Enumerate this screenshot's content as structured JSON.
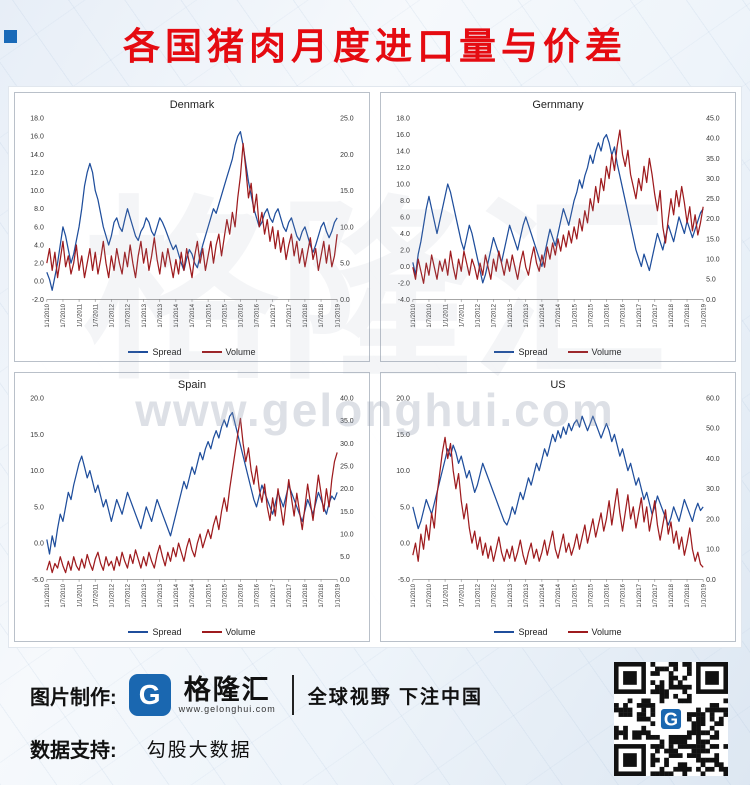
{
  "title": "各国猪肉月度进口量与价差",
  "watermark": {
    "cn": "格隆汇",
    "url": "www.gelonghui.com"
  },
  "colors": {
    "spread": "#1f4e9c",
    "volume": "#9e1b1e",
    "title_red": "#e50b11",
    "logo_blue": "#1a67b0"
  },
  "x_labels": [
    "1/1/2010",
    "1/7/2010",
    "1/1/2011",
    "1/7/2011",
    "1/1/2012",
    "1/7/2012",
    "1/1/2013",
    "1/7/2013",
    "1/1/2014",
    "1/7/2014",
    "1/1/2015",
    "1/7/2015",
    "1/1/2016",
    "1/7/2016",
    "1/1/2017",
    "1/7/2017",
    "1/1/2018",
    "1/7/2018",
    "1/1/2019"
  ],
  "chart_data": [
    {
      "type": "line",
      "title": "Denmark",
      "left_axis": {
        "min": -2,
        "max": 18,
        "step": 2
      },
      "right_axis": {
        "min": 0,
        "max": 25,
        "step": 5
      },
      "series": [
        {
          "name": "Spread",
          "axis": "left",
          "color": "#1f4e9c",
          "values": [
            1.0,
            0.2,
            -1.0,
            0.5,
            2.0,
            4.0,
            6.0,
            5.0,
            3.5,
            2.0,
            3.0,
            4.5,
            6.0,
            8.0,
            10.5,
            12.0,
            13.0,
            12.0,
            10.0,
            9.0,
            7.5,
            6.0,
            5.0,
            4.0,
            5.0,
            6.5,
            7.0,
            6.0,
            5.5,
            6.8,
            8.0,
            7.0,
            6.0,
            5.0,
            4.5,
            5.5,
            6.0,
            7.0,
            6.5,
            5.5,
            5.0,
            6.0,
            7.0,
            6.5,
            5.8,
            5.0,
            4.2,
            3.5,
            4.0,
            3.0,
            2.0,
            1.2,
            2.5,
            3.5,
            3.0,
            2.0,
            1.5,
            2.8,
            4.0,
            5.0,
            6.0,
            7.0,
            8.0,
            7.5,
            8.5,
            9.5,
            10.5,
            11.5,
            12.5,
            13.5,
            15.0,
            16.0,
            16.5,
            15.0,
            13.0,
            11.0,
            9.5,
            8.0,
            7.0,
            6.0,
            6.5,
            7.5,
            8.0,
            7.0,
            6.5,
            7.5,
            8.0,
            7.0,
            6.0,
            5.5,
            6.5,
            7.0,
            6.0,
            5.0,
            4.5,
            5.5,
            6.0,
            5.0,
            4.0,
            3.2,
            4.0,
            5.0,
            6.0,
            6.5,
            5.5,
            4.8,
            5.5,
            6.5,
            7.0
          ]
        },
        {
          "name": "Volume",
          "axis": "right",
          "color": "#9e1b1e",
          "values": [
            5.0,
            7.0,
            4.0,
            6.5,
            3.0,
            5.5,
            8.0,
            4.5,
            6.0,
            3.5,
            5.0,
            7.5,
            4.0,
            6.0,
            3.0,
            5.0,
            7.0,
            4.0,
            6.5,
            3.5,
            5.5,
            8.0,
            5.0,
            3.0,
            6.0,
            4.0,
            7.0,
            5.0,
            3.5,
            6.5,
            4.5,
            7.5,
            5.0,
            3.0,
            6.0,
            8.0,
            5.0,
            7.0,
            4.0,
            6.0,
            8.5,
            5.5,
            3.5,
            6.5,
            4.5,
            7.0,
            5.0,
            3.0,
            5.5,
            3.5,
            6.5,
            4.0,
            7.0,
            5.0,
            3.0,
            6.0,
            8.0,
            5.0,
            7.0,
            4.0,
            6.0,
            8.0,
            5.0,
            7.5,
            9.0,
            6.0,
            8.5,
            11.0,
            9.0,
            12.0,
            10.0,
            14.0,
            17.0,
            21.5,
            18.0,
            14.0,
            16.0,
            12.0,
            14.5,
            10.0,
            12.0,
            9.0,
            11.0,
            8.0,
            10.0,
            7.0,
            9.5,
            6.5,
            8.5,
            5.5,
            7.5,
            9.0,
            6.0,
            8.0,
            5.0,
            7.0,
            4.5,
            6.5,
            8.5,
            5.5,
            7.0,
            4.0,
            6.0,
            8.0,
            5.0,
            7.5,
            4.5,
            6.0,
            9.0
          ]
        }
      ]
    },
    {
      "type": "line",
      "title": "Gernmany",
      "left_axis": {
        "min": -4,
        "max": 18,
        "step": 2
      },
      "right_axis": {
        "min": 0,
        "max": 45,
        "step": 5
      },
      "series": [
        {
          "name": "Spread",
          "axis": "left",
          "color": "#1f4e9c",
          "values": [
            0.5,
            -1.0,
            1.5,
            3.0,
            5.0,
            7.0,
            8.5,
            7.0,
            5.5,
            4.0,
            5.5,
            7.0,
            8.5,
            10.0,
            9.0,
            7.5,
            6.0,
            4.5,
            3.0,
            2.0,
            3.5,
            5.0,
            4.0,
            2.5,
            1.0,
            -0.5,
            -2.0,
            -1.0,
            0.5,
            2.0,
            3.5,
            2.5,
            1.5,
            0.5,
            2.0,
            3.5,
            5.0,
            4.0,
            3.0,
            2.0,
            3.5,
            5.0,
            6.0,
            5.0,
            4.0,
            3.0,
            2.0,
            1.0,
            0.0,
            1.5,
            3.0,
            4.5,
            3.5,
            2.5,
            4.0,
            5.5,
            7.0,
            6.0,
            5.0,
            6.5,
            8.0,
            9.0,
            10.5,
            9.5,
            11.0,
            12.0,
            13.5,
            12.5,
            14.0,
            15.0,
            14.0,
            15.5,
            16.0,
            15.0,
            13.5,
            14.5,
            12.5,
            11.0,
            9.5,
            8.0,
            6.5,
            5.0,
            3.5,
            2.0,
            1.0,
            0.0,
            1.5,
            0.5,
            -0.5,
            1.0,
            2.5,
            4.0,
            3.0,
            2.0,
            3.5,
            5.0,
            4.0,
            3.0,
            4.5,
            6.0,
            5.0,
            4.0,
            5.5,
            4.5,
            3.5,
            4.5,
            5.5,
            6.5,
            7.0
          ]
        },
        {
          "name": "Volume",
          "axis": "right",
          "color": "#9e1b1e",
          "values": [
            8.0,
            5.0,
            10.0,
            7.0,
            4.0,
            9.0,
            6.0,
            11.0,
            8.0,
            5.0,
            9.5,
            7.0,
            10.0,
            6.0,
            12.0,
            8.0,
            5.0,
            10.0,
            7.0,
            12.0,
            9.0,
            6.0,
            10.0,
            8.0,
            5.0,
            9.0,
            6.0,
            11.0,
            8.0,
            5.0,
            10.0,
            7.0,
            12.0,
            9.0,
            6.0,
            10.0,
            7.0,
            11.0,
            8.0,
            5.0,
            9.0,
            12.0,
            8.0,
            6.0,
            10.0,
            13.0,
            9.0,
            7.0,
            11.0,
            8.0,
            13.0,
            10.0,
            14.0,
            11.0,
            15.0,
            12.0,
            16.0,
            13.0,
            17.0,
            14.0,
            18.0,
            15.0,
            20.0,
            17.0,
            22.0,
            19.0,
            25.0,
            22.0,
            28.0,
            24.0,
            30.0,
            27.0,
            33.0,
            30.0,
            36.0,
            32.0,
            38.0,
            42.0,
            36.0,
            33.0,
            37.0,
            31.0,
            28.0,
            25.0,
            30.0,
            27.0,
            33.0,
            29.0,
            35.0,
            31.0,
            26.0,
            22.0,
            27.0,
            18.0,
            14.0,
            20.0,
            25.0,
            21.0,
            27.0,
            23.0,
            28.0,
            24.0,
            19.0,
            23.0,
            17.0,
            21.0,
            16.0,
            19.0,
            23.0
          ]
        }
      ]
    },
    {
      "type": "line",
      "title": "Spain",
      "left_axis": {
        "min": -5,
        "max": 20,
        "step": 5
      },
      "right_axis": {
        "min": 0,
        "max": 40,
        "step": 5
      },
      "series": [
        {
          "name": "Spread",
          "axis": "left",
          "color": "#1f4e9c",
          "values": [
            0.5,
            -1.5,
            1.0,
            -0.5,
            2.0,
            4.0,
            3.0,
            5.0,
            7.0,
            6.0,
            8.0,
            9.5,
            11.0,
            12.0,
            10.5,
            9.0,
            10.0,
            8.5,
            7.0,
            8.0,
            6.5,
            5.0,
            6.0,
            4.5,
            3.0,
            4.5,
            6.0,
            5.0,
            4.0,
            5.5,
            7.0,
            6.0,
            5.0,
            4.0,
            3.0,
            2.0,
            3.5,
            5.0,
            4.0,
            3.0,
            4.5,
            6.0,
            5.0,
            4.0,
            3.0,
            2.0,
            1.0,
            2.5,
            4.0,
            5.5,
            7.0,
            8.5,
            7.5,
            9.0,
            10.5,
            9.5,
            11.0,
            12.5,
            11.5,
            13.0,
            14.0,
            13.0,
            14.5,
            15.5,
            14.5,
            16.0,
            17.0,
            16.0,
            17.5,
            18.0,
            16.5,
            15.0,
            13.5,
            12.0,
            10.5,
            9.0,
            7.5,
            6.0,
            5.0,
            6.5,
            8.0,
            7.0,
            6.0,
            5.0,
            4.0,
            5.5,
            7.0,
            6.0,
            5.0,
            6.5,
            8.0,
            7.0,
            6.0,
            5.0,
            4.0,
            3.0,
            4.5,
            6.0,
            5.0,
            4.0,
            5.5,
            7.0,
            6.0,
            5.0,
            4.0,
            5.5,
            6.5,
            6.0,
            7.0
          ]
        },
        {
          "name": "Volume",
          "axis": "right",
          "color": "#9e1b1e",
          "values": [
            2.0,
            4.0,
            1.5,
            3.5,
            2.5,
            5.0,
            3.0,
            1.5,
            4.0,
            2.0,
            5.0,
            3.0,
            2.0,
            4.5,
            2.5,
            5.5,
            3.5,
            2.0,
            4.5,
            6.0,
            3.5,
            2.0,
            5.0,
            3.0,
            4.0,
            2.0,
            5.0,
            3.0,
            6.0,
            4.0,
            2.5,
            5.5,
            3.5,
            6.5,
            4.5,
            2.5,
            5.0,
            3.0,
            6.0,
            4.0,
            2.5,
            5.5,
            7.5,
            5.0,
            3.0,
            6.0,
            4.0,
            7.0,
            5.0,
            8.0,
            6.0,
            4.0,
            7.0,
            9.0,
            6.5,
            5.0,
            8.0,
            10.0,
            7.0,
            9.0,
            11.0,
            9.0,
            12.0,
            14.0,
            11.0,
            15.0,
            18.0,
            15.0,
            20.0,
            24.0,
            28.0,
            32.0,
            35.5,
            30.0,
            26.0,
            29.0,
            24.0,
            21.0,
            25.0,
            20.0,
            17.0,
            21.0,
            16.0,
            13.0,
            18.0,
            14.0,
            20.0,
            16.0,
            12.0,
            17.0,
            22.0,
            18.0,
            14.0,
            19.0,
            15.0,
            11.0,
            16.0,
            21.0,
            17.0,
            13.0,
            18.0,
            23.0,
            19.0,
            15.0,
            20.0,
            16.0,
            22.0,
            26.0,
            28.0
          ]
        }
      ]
    },
    {
      "type": "line",
      "title": "US",
      "left_axis": {
        "min": -5,
        "max": 20,
        "step": 5
      },
      "right_axis": {
        "min": 0,
        "max": 60,
        "step": 10
      },
      "series": [
        {
          "name": "Spread",
          "axis": "left",
          "color": "#1f4e9c",
          "values": [
            5.0,
            3.5,
            2.0,
            3.0,
            4.5,
            6.0,
            5.0,
            4.0,
            5.5,
            7.0,
            8.5,
            10.0,
            11.5,
            13.0,
            12.0,
            13.5,
            12.5,
            11.0,
            12.0,
            10.5,
            9.0,
            10.0,
            8.5,
            7.0,
            8.0,
            9.5,
            11.0,
            10.0,
            9.0,
            8.0,
            7.0,
            6.0,
            5.0,
            4.0,
            3.0,
            2.5,
            3.5,
            5.0,
            4.0,
            5.5,
            7.0,
            6.0,
            7.5,
            9.0,
            8.0,
            9.5,
            11.0,
            10.0,
            11.5,
            13.0,
            12.0,
            13.5,
            15.0,
            14.0,
            15.5,
            14.5,
            16.0,
            15.0,
            16.5,
            15.5,
            16.5,
            17.0,
            16.0,
            17.5,
            16.5,
            15.5,
            16.5,
            17.5,
            16.5,
            15.5,
            14.5,
            15.5,
            16.5,
            15.5,
            14.0,
            15.0,
            13.5,
            12.0,
            13.0,
            11.5,
            10.0,
            11.0,
            9.5,
            8.0,
            9.0,
            7.5,
            6.0,
            7.0,
            5.5,
            4.0,
            5.0,
            6.5,
            5.5,
            4.5,
            3.5,
            2.5,
            3.5,
            5.0,
            4.0,
            3.0,
            4.5,
            6.0,
            5.0,
            4.0,
            3.0,
            4.5,
            5.5,
            4.5,
            5.0
          ]
        },
        {
          "name": "Volume",
          "axis": "right",
          "color": "#9e1b1e",
          "values": [
            8.0,
            12.0,
            6.0,
            15.0,
            10.0,
            18.0,
            13.0,
            22.0,
            17.0,
            28.0,
            35.0,
            42.0,
            47.0,
            40.0,
            45.0,
            36.0,
            30.0,
            35.0,
            26.0,
            20.0,
            25.0,
            17.0,
            12.0,
            16.0,
            10.0,
            14.0,
            8.0,
            12.0,
            7.0,
            11.0,
            6.0,
            10.0,
            14.0,
            9.0,
            6.0,
            10.0,
            7.0,
            11.0,
            6.0,
            9.0,
            13.0,
            8.0,
            5.0,
            9.0,
            12.0,
            7.0,
            10.0,
            6.0,
            9.0,
            13.0,
            8.0,
            12.0,
            16.0,
            10.0,
            7.0,
            11.0,
            15.0,
            9.0,
            12.0,
            8.0,
            11.0,
            15.0,
            10.0,
            14.0,
            18.0,
            12.0,
            16.0,
            20.0,
            14.0,
            18.0,
            22.0,
            16.0,
            20.0,
            26.0,
            18.0,
            24.0,
            30.0,
            22.0,
            16.0,
            22.0,
            28.0,
            20.0,
            24.0,
            17.0,
            22.0,
            27.0,
            19.0,
            24.0,
            16.0,
            21.0,
            26.0,
            18.0,
            13.0,
            18.0,
            23.0,
            15.0,
            19.0,
            12.0,
            16.0,
            10.0,
            14.0,
            8.0,
            12.0,
            17.0,
            10.0,
            6.0,
            9.0,
            5.0,
            4.0
          ]
        }
      ]
    }
  ],
  "footer": {
    "made_by_label": "图片制作:",
    "logo_letter": "G",
    "logo_cn": "格隆汇",
    "logo_url": "www.gelonghui.com",
    "slogan": "全球视野 下注中国",
    "data_by_label": "数据支持:",
    "data_provider": "勾股大数据"
  }
}
